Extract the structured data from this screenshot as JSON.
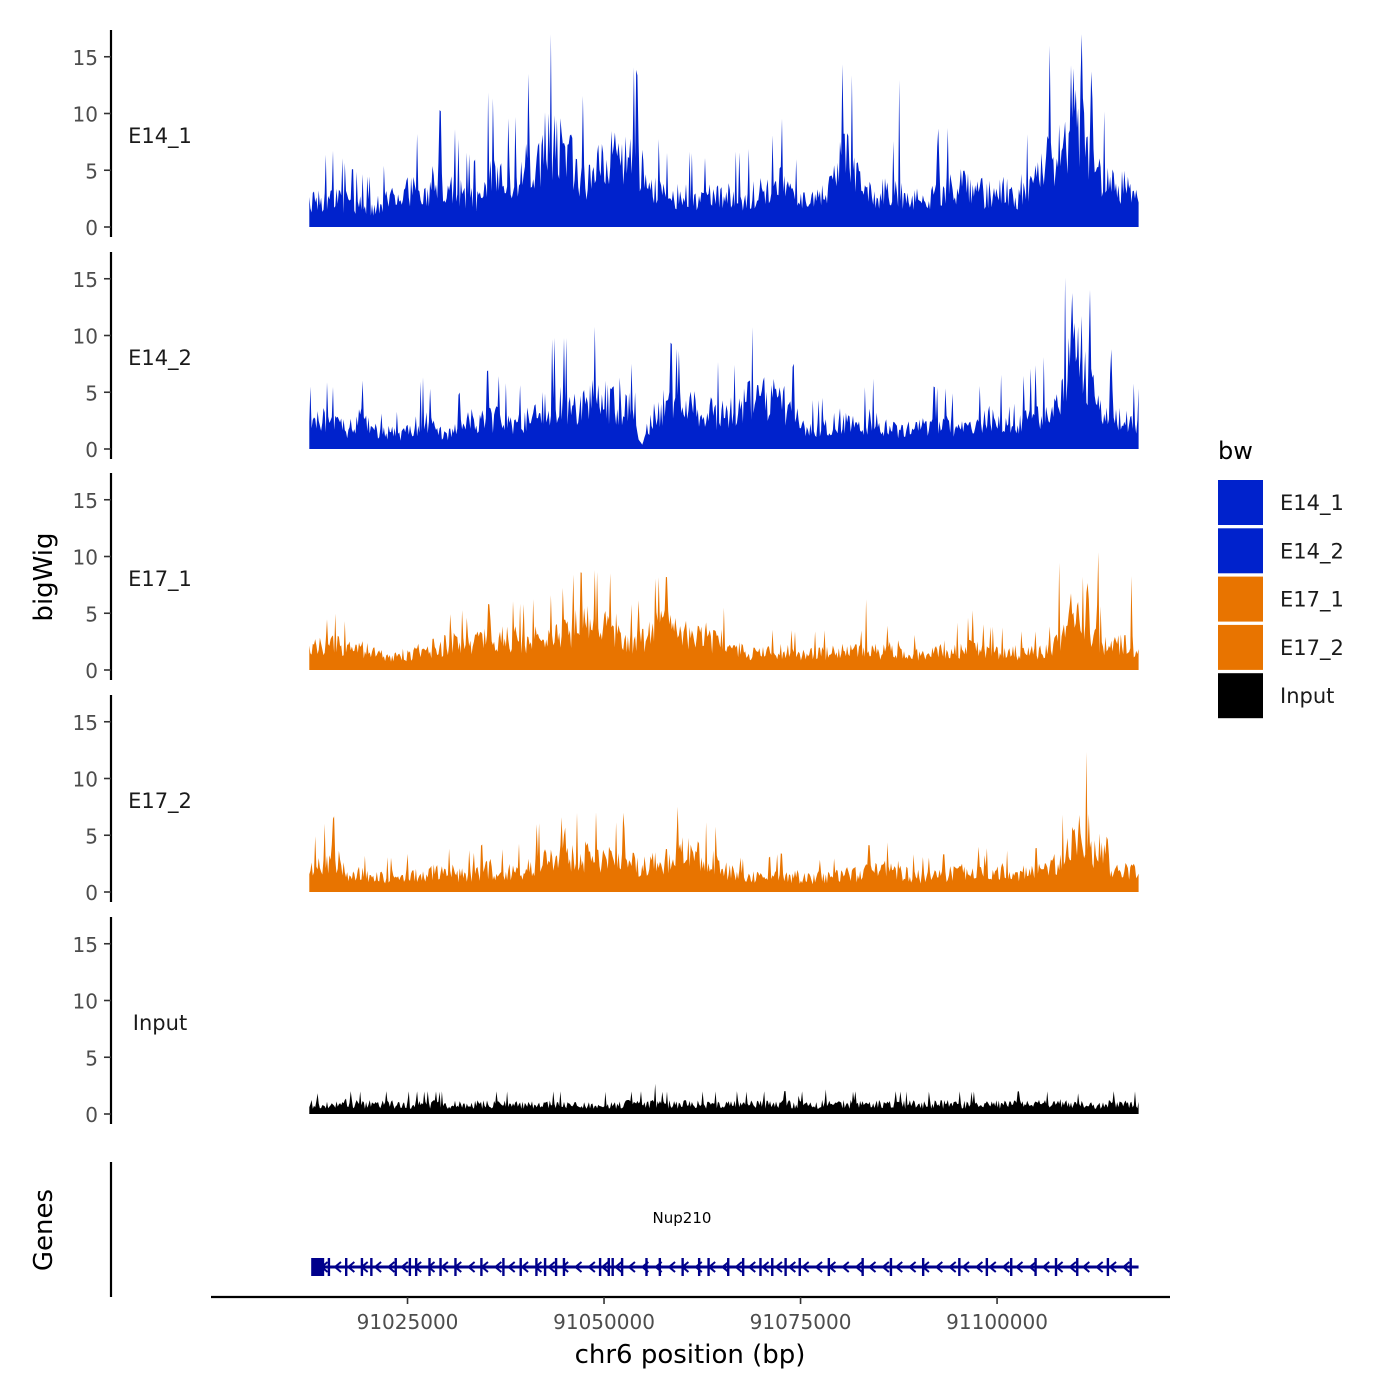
{
  "chart_data": {
    "type": "area",
    "ylabel": "bigWig",
    "genes_label": "Genes",
    "xlabel": "chr6 position (bp)",
    "x_range": [
      91012500,
      91118000
    ],
    "x_axis_range": [
      91000000,
      91122000
    ],
    "x_ticks": [
      91025000,
      91050000,
      91075000,
      91100000
    ],
    "x_tick_labels": [
      "91025000",
      "91050000",
      "91075000",
      "91100000"
    ],
    "y_range": [
      0,
      17
    ],
    "y_ticks": [
      0,
      5,
      10,
      15
    ],
    "y_tick_labels": [
      "0",
      "5",
      "10",
      "15"
    ],
    "legend": {
      "title": "bw",
      "entries": [
        {
          "label": "E14_1",
          "color": "#0022cc"
        },
        {
          "label": "E14_2",
          "color": "#0022cc"
        },
        {
          "label": "E17_1",
          "color": "#e87400"
        },
        {
          "label": "E17_2",
          "color": "#e87400"
        },
        {
          "label": "Input",
          "color": "#000000"
        }
      ]
    },
    "series": [
      {
        "name": "E14_1",
        "color": "#0022cc",
        "profile": [
          2.5,
          2.8,
          3.2,
          2.5,
          2.2,
          2.0,
          2.6,
          3.2,
          4.0,
          3.5,
          4.8,
          4.5,
          3.2,
          2.8,
          5.5,
          4.8,
          4.2,
          6.0,
          7.5,
          9.0,
          7.5,
          6.0,
          4.5,
          7.0,
          7.5,
          7.0,
          6.0,
          4.0,
          3.0,
          3.5,
          3.0,
          2.8,
          3.5,
          3.2,
          3.0,
          3.5,
          3.5,
          4.5,
          2.8,
          2.5,
          3.0,
          4.0,
          7.5,
          5.0,
          3.2,
          3.5,
          3.5,
          3.0,
          2.8,
          3.0,
          4.0,
          4.5,
          3.8,
          3.5,
          4.0,
          3.2,
          3.5,
          4.5,
          7.5,
          6.0,
          14.0,
          7.0,
          4.8,
          4.5,
          4.0,
          3.5
        ],
        "spike_amp": 0.55,
        "peaks": [
          {
            "x": 91112000,
            "h": 16.3,
            "w": 220
          },
          {
            "x": 91081000,
            "h": 8.8,
            "w": 300
          },
          {
            "x": 91092500,
            "h": 9.2,
            "w": 250
          },
          {
            "x": 91033500,
            "h": 6.3,
            "w": 180
          }
        ]
      },
      {
        "name": "E14_2",
        "color": "#0022cc",
        "profile": [
          2.5,
          3.0,
          2.4,
          2.0,
          3.0,
          2.0,
          1.8,
          1.5,
          2.0,
          3.0,
          1.8,
          1.5,
          2.5,
          3.0,
          3.2,
          3.0,
          2.2,
          3.0,
          4.0,
          4.5,
          4.6,
          4.0,
          5.0,
          5.0,
          4.5,
          4.5,
          0.5,
          3.5,
          4.5,
          4.0,
          4.5,
          4.0,
          3.5,
          4.0,
          5.0,
          5.0,
          5.5,
          5.0,
          3.5,
          2.0,
          2.0,
          2.5,
          3.0,
          2.0,
          3.0,
          2.5,
          2.0,
          2.0,
          2.5,
          2.5,
          2.5,
          2.0,
          2.0,
          3.0,
          3.5,
          1.5,
          3.0,
          3.5,
          4.0,
          5.0,
          13.0,
          7.0,
          3.5,
          3.0,
          3.0,
          2.5
        ],
        "spike_amp": 0.55,
        "peaks": [
          {
            "x": 91111800,
            "h": 14.8,
            "w": 200
          },
          {
            "x": 91114500,
            "h": 9.0,
            "w": 250
          },
          {
            "x": 91092000,
            "h": 6.2,
            "w": 250
          },
          {
            "x": 91015500,
            "h": 6.0,
            "w": 150
          }
        ]
      },
      {
        "name": "E17_1",
        "color": "#e87400",
        "profile": [
          2.6,
          2.4,
          2.6,
          2.2,
          2.2,
          1.8,
          1.5,
          1.6,
          1.7,
          2.0,
          2.4,
          2.6,
          2.8,
          2.8,
          3.0,
          3.5,
          3.2,
          3.0,
          3.4,
          3.5,
          3.8,
          4.5,
          4.6,
          4.5,
          4.4,
          3.0,
          3.2,
          4.2,
          4.3,
          3.6,
          3.6,
          3.5,
          3.0,
          2.8,
          2.0,
          1.8,
          1.8,
          1.9,
          1.8,
          1.8,
          1.8,
          1.9,
          2.0,
          1.8,
          1.8,
          2.0,
          2.2,
          1.6,
          1.6,
          1.8,
          2.0,
          2.2,
          2.5,
          2.0,
          2.0,
          1.8,
          1.8,
          1.8,
          2.0,
          3.0,
          6.5,
          3.0,
          3.0,
          2.5,
          2.5,
          2.3
        ],
        "spike_amp": 0.4,
        "peaks": [
          {
            "x": 91111500,
            "h": 8.6,
            "w": 350
          },
          {
            "x": 91047500,
            "h": 5.6,
            "w": 300
          }
        ]
      },
      {
        "name": "E17_2",
        "color": "#e87400",
        "profile": [
          2.2,
          3.0,
          3.5,
          2.0,
          1.8,
          1.5,
          1.6,
          1.6,
          1.8,
          1.8,
          2.0,
          2.0,
          1.8,
          1.8,
          2.5,
          2.0,
          2.0,
          2.5,
          3.2,
          3.3,
          3.5,
          3.6,
          3.8,
          3.5,
          3.2,
          3.0,
          3.0,
          3.0,
          3.3,
          4.0,
          4.0,
          3.2,
          3.0,
          2.0,
          1.5,
          1.5,
          1.6,
          1.8,
          1.6,
          1.5,
          1.5,
          1.5,
          1.8,
          1.8,
          2.2,
          2.3,
          2.3,
          1.8,
          1.6,
          1.6,
          1.8,
          2.0,
          2.2,
          2.0,
          2.2,
          1.8,
          1.8,
          2.0,
          2.5,
          3.5,
          5.0,
          3.5,
          4.5,
          2.5,
          2.2,
          2.0
        ],
        "spike_amp": 0.4,
        "peaks": [
          {
            "x": 91052500,
            "h": 8.1,
            "w": 180
          },
          {
            "x": 91110500,
            "h": 7.0,
            "w": 220
          },
          {
            "x": 91114000,
            "h": 6.3,
            "w": 200
          },
          {
            "x": 91045000,
            "h": 6.0,
            "w": 300
          }
        ]
      },
      {
        "name": "Input",
        "color": "#000000",
        "profile": [
          1.0
        ],
        "spike_amp": 0.45,
        "peaks": [
          {
            "x": 91056500,
            "h": 2.9,
            "w": 120
          },
          {
            "x": 91013500,
            "h": 2.4,
            "w": 120
          }
        ]
      }
    ],
    "gene": {
      "name": "Nup210",
      "start": 91013000,
      "end": 91118000,
      "strand": "-",
      "color": "#00008b",
      "exons": [
        91013500,
        91015000,
        91017200,
        91019200,
        91020400,
        91023500,
        91025300,
        91026100,
        91027800,
        91029200,
        91031100,
        91034400,
        91037200,
        91039400,
        91041400,
        91042500,
        91043900,
        91044900,
        91049500,
        91050600,
        91051100,
        91052300,
        91055400,
        91057100,
        91060000,
        91062100,
        91063300,
        91065800,
        91067700,
        91069900,
        91071400,
        91073100,
        91074900,
        91078600,
        91082900,
        91086500,
        91090600,
        91095200,
        91098700,
        91101800,
        91104900,
        91107500,
        91110200,
        91114100,
        91117000
      ]
    }
  }
}
